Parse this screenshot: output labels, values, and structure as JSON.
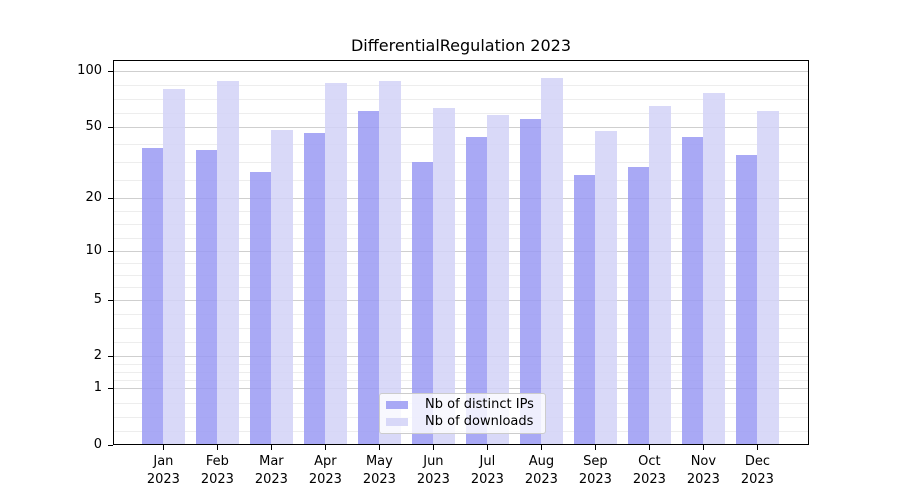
{
  "chart_data": {
    "type": "bar",
    "title": "DifferentialRegulation 2023",
    "categories": [
      "Jan 2023",
      "Feb 2023",
      "Mar 2023",
      "Apr 2023",
      "May 2023",
      "Jun 2023",
      "Jul 2023",
      "Aug 2023",
      "Sep 2023",
      "Oct 2023",
      "Nov 2023",
      "Dec 2023"
    ],
    "series": [
      {
        "name": "Nb of distinct IPs",
        "color": "#9a9af3",
        "values": [
          38,
          37,
          28,
          46,
          61,
          32,
          44,
          55,
          27,
          30,
          44,
          35
        ]
      },
      {
        "name": "Nb of downloads",
        "color": "#d2d2f7",
        "values": [
          80,
          88,
          48,
          86,
          88,
          63,
          58,
          92,
          47,
          65,
          76,
          61
        ]
      }
    ],
    "bar_alpha": 0.85,
    "y_axis": {
      "scale": "log10(1+x)",
      "ticks": [
        0,
        1,
        2,
        5,
        10,
        20,
        50,
        100
      ],
      "max": 115,
      "minor_subdivisions": 4
    },
    "ylim": [
      0,
      115
    ],
    "grid": {
      "show": true,
      "major_color": "#cfcfcf",
      "minor_color": "#ededed"
    },
    "legend": {
      "position": "lower center"
    },
    "spine_color": "#000000",
    "figure_bg": "#ffffff"
  }
}
